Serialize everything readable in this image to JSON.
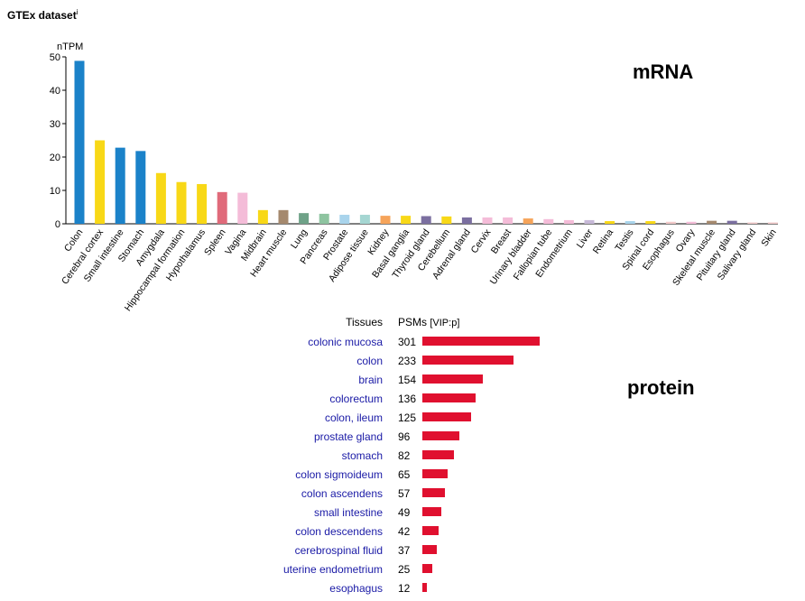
{
  "title": "GTEx dataset",
  "title_sup": "i",
  "mrna_label": "mRNA",
  "protein_label": "protein",
  "colors": {
    "protein_bar": "#e0102f",
    "link": "#1a1aa6"
  },
  "chart_data": [
    {
      "type": "bar",
      "ylabel": "nTPM",
      "ylim": [
        0,
        50
      ],
      "yticks": [
        0,
        10,
        20,
        30,
        40,
        50
      ],
      "grid": false,
      "categories": [
        "Colon",
        "Cerebral cortex",
        "Small intestine",
        "Stomach",
        "Amygdala",
        "Hippocampal formation",
        "Hypothalamus",
        "Spleen",
        "Vagina",
        "Midbrain",
        "Heart muscle",
        "Lung",
        "Pancreas",
        "Prostate",
        "Adipose tissue",
        "Kidney",
        "Basal ganglia",
        "Thyroid gland",
        "Cerebellum",
        "Adrenal gland",
        "Cervix",
        "Breast",
        "Urinary bladder",
        "Fallopian tube",
        "Endometrium",
        "Liver",
        "Retina",
        "Testis",
        "Spinal cord",
        "Esophagus",
        "Ovary",
        "Skeletal muscle",
        "Pituitary gland",
        "Salivary gland",
        "Skin"
      ],
      "values": [
        48.8,
        25.0,
        22.8,
        21.8,
        15.2,
        12.5,
        11.9,
        9.5,
        9.3,
        4.1,
        4.1,
        3.2,
        3.0,
        2.7,
        2.7,
        2.4,
        2.4,
        2.3,
        2.2,
        1.9,
        1.9,
        1.9,
        1.6,
        1.4,
        1.1,
        1.1,
        0.8,
        0.8,
        0.8,
        0.6,
        0.6,
        0.9,
        0.9,
        0.4,
        0.4
      ],
      "colors": [
        "#1b82c9",
        "#f8d817",
        "#1b82c9",
        "#1b82c9",
        "#f8d817",
        "#f8d817",
        "#f8d817",
        "#e06a7a",
        "#f4bcd8",
        "#f8d817",
        "#a5896e",
        "#6fa288",
        "#8ec4a0",
        "#a9d4ec",
        "#a5d6d2",
        "#f6a45a",
        "#f8d817",
        "#7b6fa0",
        "#f8d817",
        "#7b6fa0",
        "#f4bcd8",
        "#f4bcd8",
        "#f6a45a",
        "#f4bcd8",
        "#f4bcd8",
        "#c7b9d8",
        "#f8d817",
        "#a9d4ec",
        "#f8d817",
        "#f2c9c9",
        "#f4bcd8",
        "#a5896e",
        "#7b6fa0",
        "#f2c9c9",
        "#f2c9c9"
      ]
    },
    {
      "type": "bar",
      "orientation": "horizontal",
      "header_tissues": "Tissues",
      "header_psms": "PSMs",
      "header_unit": "[VIP:p]",
      "categories": [
        "colonic mucosa",
        "colon",
        "brain",
        "colorectum",
        "colon, ileum",
        "prostate gland",
        "stomach",
        "colon sigmoideum",
        "colon ascendens",
        "small intestine",
        "colon descendens",
        "cerebrospinal fluid",
        "uterine endometrium",
        "esophagus"
      ],
      "values": [
        301,
        233,
        154,
        136,
        125,
        96,
        82,
        65,
        57,
        49,
        42,
        37,
        25,
        12
      ]
    }
  ]
}
